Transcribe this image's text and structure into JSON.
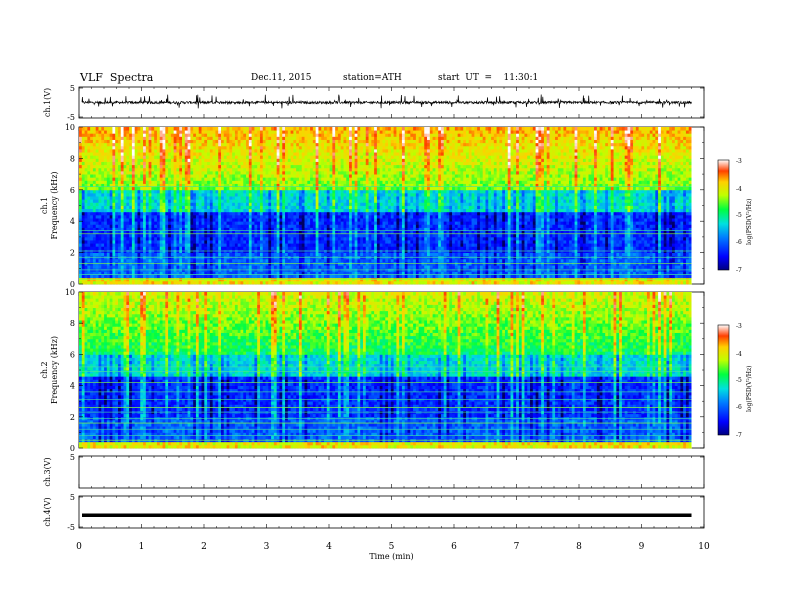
{
  "header": {
    "title": "VLF  Spectra",
    "date": "Dec.11, 2015",
    "station": "station=ATH",
    "start": "start  UT  =    11:30:1"
  },
  "chart_data": [
    {
      "type": "line",
      "name": "ch1-waveform",
      "ylabel": "ch.1(V)",
      "ylim": [
        -5,
        5
      ],
      "yticks": [
        "5",
        "-5"
      ],
      "description_values": {
        "baseline": 0,
        "typical_spike_max": 2.5,
        "typical_spike_min": -2
      }
    },
    {
      "type": "heatmap",
      "name": "ch1-spectrogram",
      "ylabel_channel": "ch.1",
      "ylabel": "Frequency  (kHz)",
      "ylim": [
        0,
        10
      ],
      "yticks": [
        "0",
        "2",
        "4",
        "6",
        "8",
        "10"
      ],
      "colorbar": {
        "label": "log(PSD(V²/Hz)",
        "range": [
          -7,
          -3
        ],
        "ticks": [
          "-3",
          "-4",
          "-5",
          "-6",
          "-7"
        ]
      }
    },
    {
      "type": "heatmap",
      "name": "ch2-spectrogram",
      "ylabel_channel": "ch.2",
      "ylabel": "Frequency  (kHz)",
      "ylim": [
        0,
        10
      ],
      "yticks": [
        "0",
        "2",
        "4",
        "6",
        "8",
        "10"
      ],
      "colorbar": {
        "label": "log(PSD(V²/Hz)",
        "range": [
          -7,
          -3
        ],
        "ticks": [
          "-3",
          "-4",
          "-5",
          "-6",
          "-7"
        ]
      }
    },
    {
      "type": "line",
      "name": "ch3-waveform",
      "ylabel": "ch.3(V)",
      "ylim": [
        -5,
        5
      ],
      "yticks": [
        "5"
      ],
      "values_note": "flat"
    },
    {
      "type": "line",
      "name": "ch4-waveform",
      "ylabel": "ch.4(V)",
      "ylim": [
        -5,
        5
      ],
      "yticks": [
        "5",
        "-5"
      ],
      "level": -1
    }
  ],
  "xaxis": {
    "label": "Time  (min)",
    "range": [
      0,
      10
    ],
    "data_end": 9.8,
    "ticks": [
      "0",
      "1",
      "2",
      "3",
      "4",
      "5",
      "6",
      "7",
      "8",
      "9",
      "10"
    ]
  }
}
